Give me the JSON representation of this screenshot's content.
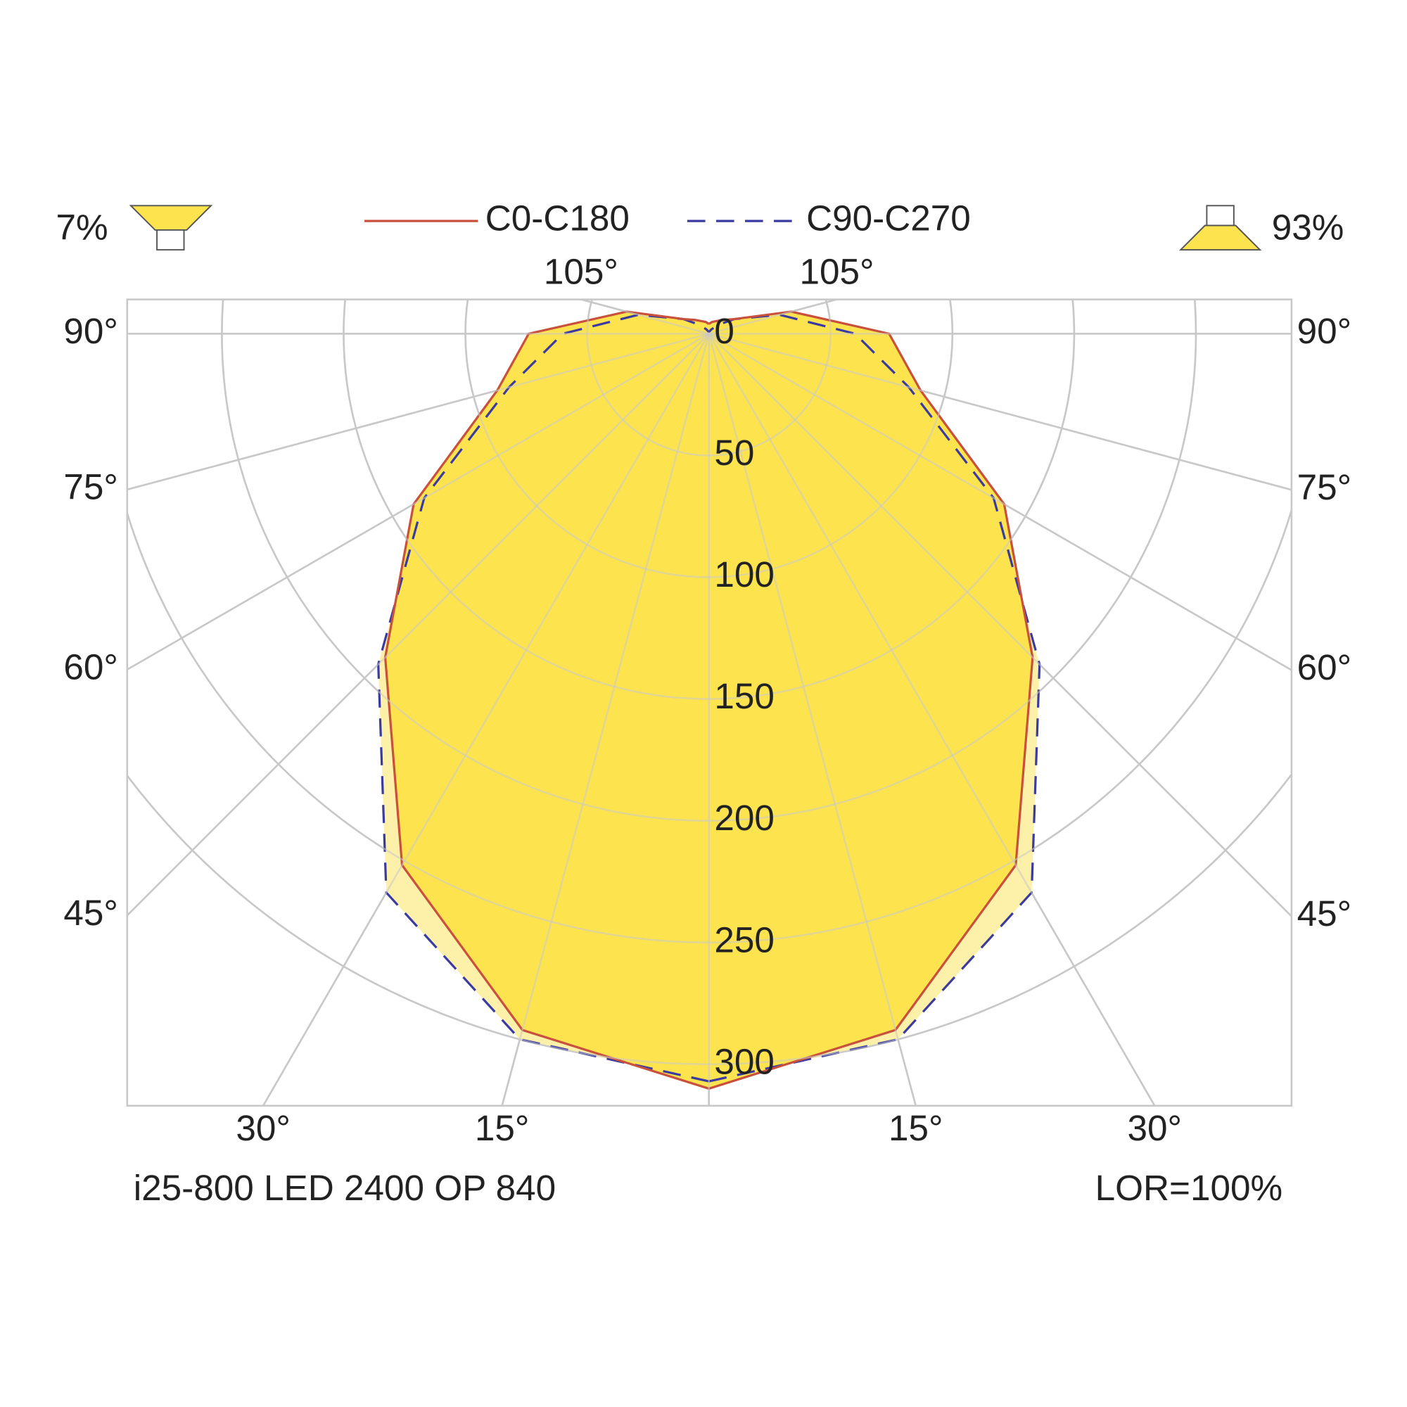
{
  "chart_data": {
    "type": "polar",
    "legend": {
      "left_share": "7%",
      "right_share": "93%"
    },
    "footer_left": "i25-800 LED 2400 OP 840",
    "footer_right": "LOR=100%",
    "angles": [
      0,
      15,
      30,
      45,
      60,
      75,
      90,
      105,
      120,
      135,
      150,
      165,
      180
    ],
    "series": [
      {
        "name": "C90-C270",
        "color": "#3a3aa0",
        "fill": "#fdf0a8",
        "dash": true,
        "values": [
          307,
          300,
          265,
          192,
          135,
          85,
          60,
          30,
          12,
          5,
          2,
          1,
          1
        ]
      },
      {
        "name": "C0-C180",
        "color": "#c8503c",
        "fill": "#fde44f",
        "dash": false,
        "values": [
          310,
          296,
          252,
          188,
          140,
          90,
          74,
          35,
          12,
          8,
          6,
          5,
          4
        ]
      }
    ],
    "rlim": [
      0,
      300
    ],
    "rticks": [
      0,
      50,
      100,
      150,
      200,
      250,
      300
    ],
    "angle_ticks": [
      {
        "value": 15,
        "label": "15°"
      },
      {
        "value": 30,
        "label": "30°"
      },
      {
        "value": 45,
        "label": "45°"
      },
      {
        "value": 60,
        "label": "60°"
      },
      {
        "value": 75,
        "label": "75°"
      },
      {
        "value": 90,
        "label": "90°"
      },
      {
        "value": 105,
        "label": "105°"
      }
    ],
    "grid": true
  }
}
